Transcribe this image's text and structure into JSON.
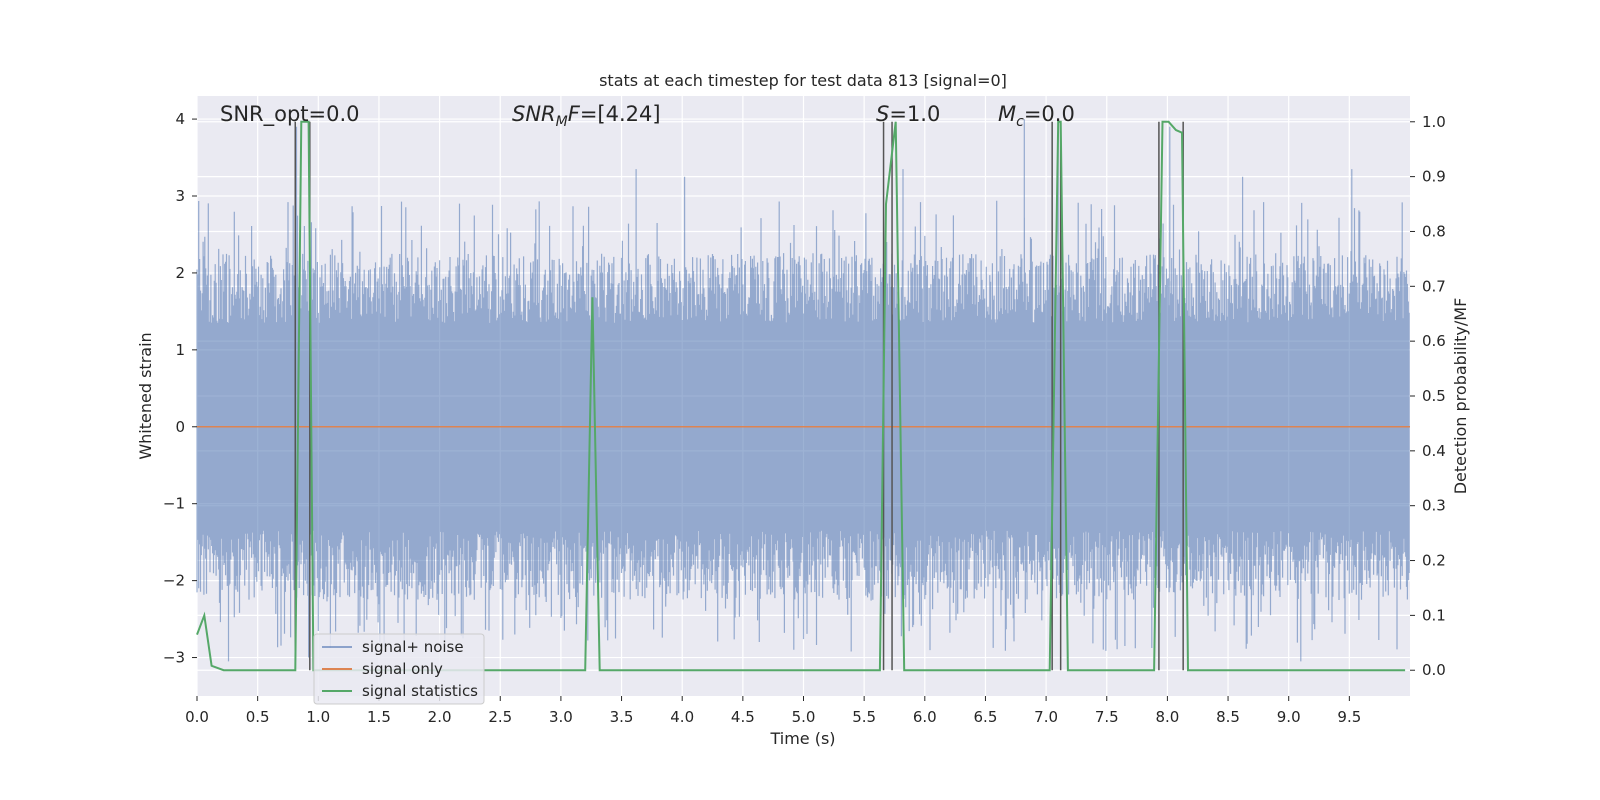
{
  "chart_data": {
    "type": "line",
    "title": "stats at each timestep for test data 813 [signal=0]",
    "xlabel": "Time (s)",
    "ylabel_left": "Whitened strain",
    "ylabel_right": "Detection probability/MF",
    "xlim": [
      0,
      10
    ],
    "ylim_left": [
      -3.5,
      4.3
    ],
    "ylim_right": [
      -0.047,
      1.047
    ],
    "x_ticks": [
      "0.0",
      "0.5",
      "1.0",
      "1.5",
      "2.0",
      "2.5",
      "3.0",
      "3.5",
      "4.0",
      "4.5",
      "5.0",
      "5.5",
      "6.0",
      "6.5",
      "7.0",
      "7.5",
      "8.0",
      "8.5",
      "9.0",
      "9.5"
    ],
    "x_tick_values": [
      0,
      0.5,
      1,
      1.5,
      2,
      2.5,
      3,
      3.5,
      4,
      4.5,
      5,
      5.5,
      6,
      6.5,
      7,
      7.5,
      8,
      8.5,
      9,
      9.5
    ],
    "y_left_ticks": [
      "4",
      "3",
      "2",
      "1",
      "0",
      "−1",
      "−2",
      "−3"
    ],
    "y_left_tick_values": [
      4,
      3,
      2,
      1,
      0,
      -1,
      -2,
      -3
    ],
    "y_right_ticks": [
      "1.0",
      "0.9",
      "0.8",
      "0.7",
      "0.6",
      "0.5",
      "0.4",
      "0.3",
      "0.2",
      "0.1",
      "0.0"
    ],
    "y_right_tick_values": [
      1.0,
      0.9,
      0.8,
      0.7,
      0.6,
      0.5,
      0.4,
      0.3,
      0.2,
      0.1,
      0.0
    ],
    "grid": true,
    "legend_placement": "lower-left",
    "colors": {
      "background": "#eaeaf2",
      "grid": "#ffffff",
      "noise": "#4c72b0",
      "signal_only": "#dd8452",
      "statistics": "#55a868",
      "peak_markers": "#555555"
    },
    "series": [
      {
        "name": "signal+ noise",
        "axis": "left",
        "envelope_typical": 1.8,
        "envelope_peak": 2.8,
        "notable_spikes": [
          {
            "x": 0.82,
            "y": 3.9
          },
          {
            "x": 0.92,
            "y": -3.0
          },
          {
            "x": 0.26,
            "y": -3.05
          },
          {
            "x": 3.62,
            "y": 3.35
          },
          {
            "x": 4.02,
            "y": 3.25
          },
          {
            "x": 5.82,
            "y": 3.35
          },
          {
            "x": 6.82,
            "y": 4.0
          },
          {
            "x": 7.1,
            "y": 4.0
          },
          {
            "x": 8.02,
            "y": 3.9
          },
          {
            "x": 8.62,
            "y": 3.25
          },
          {
            "x": 9.52,
            "y": 3.35
          },
          {
            "x": 9.1,
            "y": -3.05
          },
          {
            "x": 2.62,
            "y": -2.7
          },
          {
            "x": 4.92,
            "y": -2.9
          },
          {
            "x": 7.65,
            "y": -2.85
          }
        ]
      },
      {
        "name": "signal only",
        "axis": "left",
        "x": [
          0,
          10
        ],
        "y": [
          0,
          0
        ]
      },
      {
        "name": "signal statistics",
        "axis": "right",
        "x": [
          0.0,
          0.06,
          0.12,
          0.22,
          0.81,
          0.86,
          0.92,
          0.96,
          1.0,
          3.2,
          3.26,
          3.32,
          5.63,
          5.68,
          5.76,
          5.83,
          7.03,
          7.1,
          7.12,
          7.18,
          7.89,
          7.96,
          8.01,
          8.07,
          8.12,
          8.17,
          9.96
        ],
        "y": [
          0.065,
          0.1,
          0.008,
          0.0,
          0.0,
          1.0,
          1.0,
          0.0,
          0.0,
          0.0,
          0.68,
          0.0,
          0.0,
          0.85,
          1.0,
          0.0,
          0.0,
          1.0,
          1.0,
          0.0,
          0.0,
          1.0,
          1.0,
          0.985,
          0.98,
          0.0,
          0.0
        ]
      }
    ],
    "peak_markers_x": [
      0.81,
      0.93,
      5.66,
      5.73,
      7.05,
      7.12,
      7.93,
      8.13
    ],
    "annotations": {
      "snr_opt": "SNR_opt=0.0",
      "snr_mf": "=[4.24]",
      "snr_mf_math": "SNR",
      "snr_mf_sub": "M",
      "snr_mf_tail": "F",
      "s_math": "S",
      "s_value": "=1.0",
      "mc_math": "M",
      "mc_sub": "c",
      "mc_value": "=0.0"
    }
  }
}
